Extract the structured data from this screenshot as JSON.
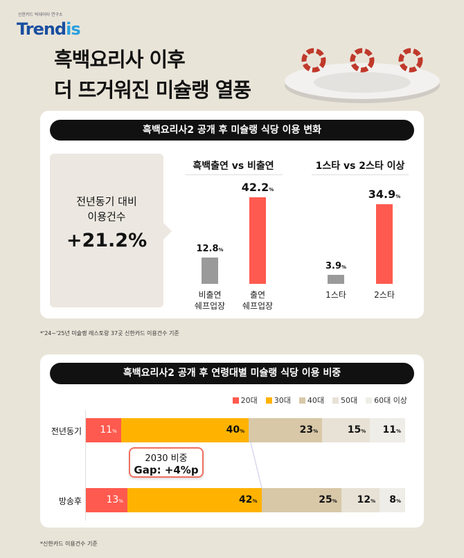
{
  "brand": {
    "subtitle": "신한카드 빅데이터 연구소",
    "name_a": "Trend",
    "name_b": "is"
  },
  "title": {
    "line1": "흑백요리사 이후",
    "line2": "더 뜨거워진 미슐랭 열풍"
  },
  "colors": {
    "red": "#ff5a4f",
    "grey": "#9a9a9a",
    "c20": "#ff5a4f",
    "c30": "#ffb300",
    "c40": "#d8c8a8",
    "c50": "#e8e2d6",
    "c60": "#efede8"
  },
  "card1": {
    "header": "흑백요리사2 공개 후 미슐랭 식당 이용 변화",
    "kpi": {
      "label1": "전년동기 대비",
      "label2": "이용건수",
      "value": "+21.2%"
    },
    "footnote": "*'24~'25년 미슐랭 레스토랑 37곳 신한카드 이용건수 기준"
  },
  "card2": {
    "header": "흑백요리사2 공개 후 연령대별 미슐랭 식당 이용 비중",
    "callout": {
      "line1": "2030 비중",
      "line2": "Gap: +4%p"
    },
    "footnote": "*신한카드 이용건수 기준"
  },
  "chart_data": [
    {
      "type": "bar",
      "title": "흑백출연 vs 비출연",
      "categories": [
        "비출연\n쉐프업장",
        "출연\n쉐프업장"
      ],
      "values": [
        12.8,
        42.2
      ],
      "unit": "%"
    },
    {
      "type": "bar",
      "title": "1스타 vs 2스타 이상",
      "categories": [
        "1스타",
        "2스타"
      ],
      "values": [
        3.9,
        34.9
      ],
      "unit": "%"
    },
    {
      "type": "bar",
      "stacked": true,
      "orientation": "horizontal",
      "categories": [
        "전년동기",
        "방송후"
      ],
      "unit": "%",
      "legend": "top-right",
      "series": [
        {
          "name": "20대",
          "values": [
            11,
            13
          ]
        },
        {
          "name": "30대",
          "values": [
            40,
            42
          ]
        },
        {
          "name": "40대",
          "values": [
            23,
            25
          ]
        },
        {
          "name": "50대",
          "values": [
            15,
            12
          ]
        },
        {
          "name": "60대 이상",
          "values": [
            11,
            8
          ]
        }
      ]
    }
  ]
}
